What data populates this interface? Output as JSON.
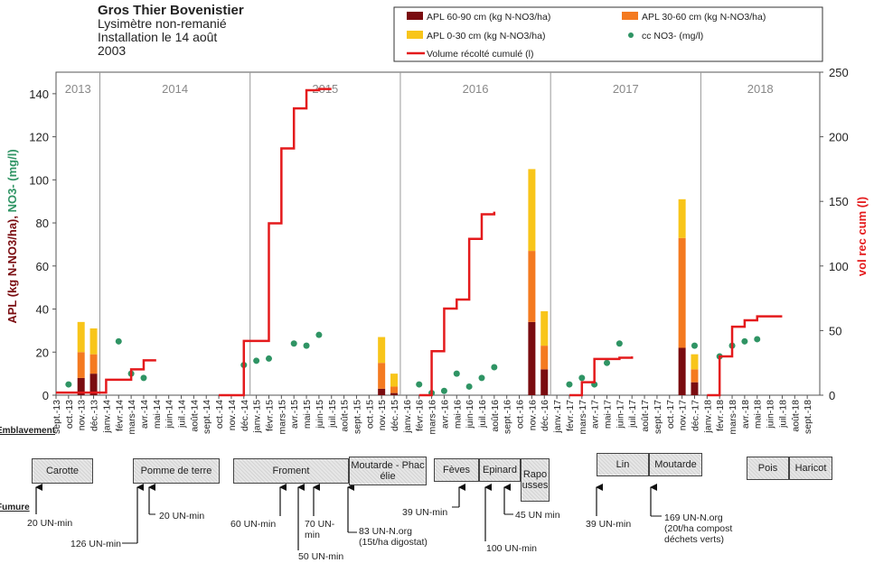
{
  "chart_data": {
    "type": "combo",
    "title": "Gros Thier Bovenistier",
    "subtitle": [
      "Lysimètre non-remanié",
      "Installation le 14 août",
      "2003"
    ],
    "y_label": [
      "APL (kg N-NO3/ha),",
      "NO3- (mg/l)"
    ],
    "y2_label": "vol rec cum (l)",
    "years": [
      "2013",
      "2014",
      "2015",
      "2016",
      "2017",
      "2018"
    ],
    "categories": [
      "sept.-13",
      "oct.-13",
      "nov.-13",
      "déc.-13",
      "janv.-14",
      "févr.-14",
      "mars-14",
      "avr.-14",
      "mai-14",
      "juin-14",
      "juil.-14",
      "août-14",
      "sept.-14",
      "oct.-14",
      "nov.-14",
      "déc.-14",
      "janv.-15",
      "févr.-15",
      "mars-15",
      "avr.-15",
      "mai-15",
      "juin-15",
      "juil.-15",
      "août-15",
      "sept.-15",
      "oct.-15",
      "nov.-15",
      "déc.-15",
      "janv.-16",
      "févr.-16",
      "mars-16",
      "avr.-16",
      "mai-16",
      "juin-16",
      "juil.-16",
      "août-16",
      "sept.-16",
      "oct.-16",
      "nov.-16",
      "déc.-16",
      "janv.-17",
      "févr.-17",
      "mars-17",
      "avr.-17",
      "mai-17",
      "juin-17",
      "juil.-17",
      "août-17",
      "sept.-17",
      "oct.-17",
      "nov.-17",
      "déc.-17",
      "janv.-18",
      "févr.-18",
      "mars-18",
      "avr.-18",
      "mai-18",
      "juin-18",
      "juil.-18",
      "août-18",
      "sept.-18"
    ],
    "ylim": [
      0,
      150
    ],
    "yticks": [
      0,
      20,
      40,
      60,
      80,
      100,
      120,
      140
    ],
    "y2lim": [
      0,
      250
    ],
    "y2ticks": [
      0,
      50,
      100,
      150,
      200,
      250
    ],
    "grid": false,
    "series": [
      {
        "name": "APL 60-90 cm (kg N-NO3/ha)",
        "type": "bar",
        "color": "#7a0c10",
        "values": [
          null,
          null,
          8,
          10,
          null,
          null,
          null,
          null,
          null,
          null,
          null,
          null,
          null,
          null,
          null,
          null,
          null,
          null,
          null,
          null,
          null,
          null,
          null,
          null,
          null,
          null,
          3,
          1,
          null,
          null,
          null,
          null,
          null,
          null,
          null,
          null,
          null,
          null,
          34,
          12,
          null,
          null,
          null,
          null,
          null,
          null,
          null,
          null,
          null,
          null,
          22,
          6,
          null,
          null,
          null,
          null,
          null,
          null,
          null,
          null,
          null
        ]
      },
      {
        "name": "APL 30-60 cm (kg N-NO3/ha)",
        "type": "bar",
        "color": "#f47a20",
        "values": [
          null,
          null,
          12,
          9,
          null,
          null,
          null,
          null,
          null,
          null,
          null,
          null,
          null,
          null,
          null,
          null,
          null,
          null,
          null,
          null,
          null,
          null,
          null,
          null,
          null,
          null,
          12,
          3,
          null,
          null,
          null,
          null,
          null,
          null,
          null,
          null,
          null,
          null,
          33,
          11,
          null,
          null,
          null,
          null,
          null,
          null,
          null,
          null,
          null,
          null,
          51,
          6,
          null,
          null,
          null,
          null,
          null,
          null,
          null,
          null,
          null
        ]
      },
      {
        "name": "APL 0-30 cm (kg N-NO3/ha)",
        "type": "bar",
        "color": "#f8c51a",
        "values": [
          null,
          null,
          14,
          12,
          null,
          null,
          null,
          null,
          null,
          null,
          null,
          null,
          null,
          null,
          null,
          null,
          null,
          null,
          null,
          null,
          null,
          null,
          null,
          null,
          null,
          null,
          12,
          6,
          null,
          null,
          null,
          null,
          null,
          null,
          null,
          null,
          null,
          null,
          38,
          16,
          null,
          null,
          null,
          null,
          null,
          null,
          null,
          null,
          null,
          null,
          18,
          7,
          null,
          null,
          null,
          null,
          null,
          null,
          null,
          null,
          null
        ]
      },
      {
        "name": "cc NO3- (mg/l)",
        "type": "scatter",
        "color": "#2f9464",
        "values": [
          null,
          5,
          null,
          null,
          null,
          25,
          10,
          8,
          null,
          null,
          null,
          null,
          null,
          null,
          null,
          14,
          16,
          17,
          null,
          24,
          23,
          28,
          null,
          null,
          null,
          null,
          null,
          null,
          null,
          5,
          1,
          2,
          10,
          4,
          8,
          13,
          null,
          null,
          null,
          null,
          null,
          5,
          8,
          5,
          15,
          24,
          null,
          null,
          null,
          null,
          null,
          23,
          null,
          18,
          23,
          25,
          26,
          null,
          null,
          null,
          null
        ]
      },
      {
        "name": "Volume récolté cumulé (l)",
        "type": "line",
        "color": "#e41a1c",
        "axis": "y2",
        "values": [
          2,
          2,
          2,
          2,
          12,
          12,
          20,
          27,
          27,
          null,
          null,
          null,
          null,
          0,
          0,
          42,
          42,
          133,
          191,
          222,
          236,
          237,
          237,
          null,
          null,
          null,
          null,
          null,
          null,
          0,
          34,
          67,
          74,
          121,
          140,
          142,
          null,
          null,
          null,
          null,
          null,
          0,
          10,
          28,
          28,
          29,
          30,
          null,
          null,
          null,
          null,
          null,
          0,
          30,
          53,
          58,
          61,
          61,
          61,
          null,
          null
        ]
      }
    ],
    "row_labels": [
      "Emblavement",
      "Fumure"
    ],
    "crops": [
      "Carotte",
      "Pomme de terre",
      "Froment",
      "Moutarde - Phacélie",
      "Fèves",
      "Epinard",
      "Rapousses",
      "Lin",
      "Moutarde",
      "Pois",
      "Haricot"
    ],
    "fertilization": [
      "20 UN-min",
      "126 UN-min",
      "20 UN-min",
      "60 UN-min",
      "50 UN-min",
      "70 UN-\nmin",
      "83 UN-N.org\n(15t/ha digostat)",
      "39 UN-min",
      "100 UN-min",
      "45 UN min",
      "39 UN-min",
      "169 UN-N.org\n(20t/ha compost\ndéchets verts)"
    ]
  }
}
